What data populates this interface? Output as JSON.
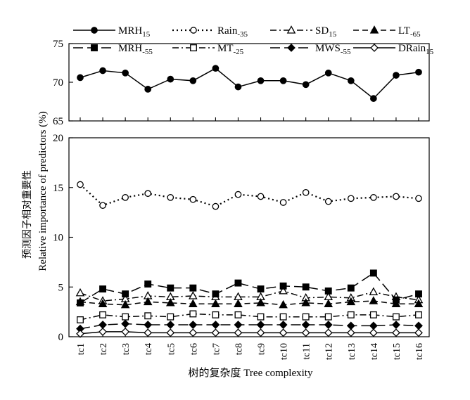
{
  "chart_data": {
    "type": "line",
    "title": "",
    "xlabel": "树的复杂度 Tree complexity",
    "ylabel_cn": "预测因子相对重要性",
    "ylabel_en": "Relative importance of predictors (%)",
    "categories": [
      "tc1",
      "tc2",
      "tc3",
      "tc4",
      "tc5",
      "tc6",
      "tc7",
      "tc8",
      "tc9",
      "tc10",
      "tc11",
      "tc12",
      "tc13",
      "tc14",
      "tc15",
      "tc16"
    ],
    "panels": [
      {
        "name": "upper",
        "ylim": [
          65,
          75
        ],
        "yticks": [
          "65",
          "70",
          "75"
        ]
      },
      {
        "name": "lower",
        "ylim": [
          0,
          20
        ],
        "yticks": [
          "0",
          "5",
          "10",
          "15",
          "20"
        ]
      }
    ],
    "grid": false,
    "legend_position": "top",
    "series": [
      {
        "name": "MRH",
        "sub": "15",
        "panel": "upper",
        "line": "solid",
        "marker": "circle",
        "filled": true,
        "values": [
          70.6,
          71.5,
          71.2,
          69.1,
          70.4,
          70.2,
          71.8,
          69.4,
          70.2,
          70.2,
          69.7,
          71.2,
          70.2,
          67.9,
          70.9,
          71.3
        ]
      },
      {
        "name": "Rain",
        "sub": "-35",
        "panel": "lower",
        "line": "dotted",
        "marker": "circle",
        "filled": false,
        "values": [
          15.3,
          13.2,
          14.0,
          14.4,
          14.0,
          13.8,
          13.1,
          14.3,
          14.1,
          13.5,
          14.5,
          13.6,
          13.9,
          14.0,
          14.1,
          13.9
        ]
      },
      {
        "name": "SD",
        "sub": "15",
        "panel": "lower",
        "line": "dashdot",
        "marker": "triangle",
        "filled": false,
        "values": [
          4.4,
          3.6,
          3.8,
          4.1,
          4.0,
          4.1,
          4.0,
          4.0,
          4.0,
          4.6,
          3.9,
          4.0,
          3.9,
          4.5,
          4.0,
          3.7
        ]
      },
      {
        "name": "LT",
        "sub": "-65",
        "panel": "lower",
        "line": "dashed",
        "marker": "triangle",
        "filled": true,
        "values": [
          3.5,
          3.3,
          3.2,
          3.5,
          3.4,
          3.3,
          3.3,
          3.3,
          3.4,
          3.2,
          3.4,
          3.3,
          3.5,
          3.6,
          3.3,
          3.3
        ]
      },
      {
        "name": "MRH",
        "sub": "-55",
        "panel": "lower",
        "line": "longdash",
        "marker": "square",
        "filled": true,
        "values": [
          3.4,
          4.8,
          4.3,
          5.3,
          4.9,
          4.9,
          4.3,
          5.4,
          4.8,
          5.1,
          5.0,
          4.6,
          4.9,
          6.4,
          3.7,
          4.3
        ]
      },
      {
        "name": "MT",
        "sub": "-25",
        "panel": "lower",
        "line": "dashdot",
        "marker": "square",
        "filled": false,
        "values": [
          1.7,
          2.2,
          2.0,
          2.1,
          2.0,
          2.3,
          2.2,
          2.2,
          2.0,
          2.0,
          2.0,
          2.0,
          2.2,
          2.2,
          2.0,
          2.2
        ]
      },
      {
        "name": "MWS",
        "sub": "-55",
        "panel": "lower",
        "line": "longdash",
        "marker": "diamond",
        "filled": true,
        "values": [
          0.8,
          1.2,
          1.3,
          1.2,
          1.2,
          1.2,
          1.2,
          1.2,
          1.2,
          1.2,
          1.2,
          1.2,
          1.1,
          1.1,
          1.2,
          1.1
        ]
      },
      {
        "name": "DRain",
        "sub": "15",
        "panel": "lower",
        "line": "solid",
        "marker": "diamond",
        "filled": false,
        "values": [
          0.3,
          0.5,
          0.5,
          0.4,
          0.4,
          0.4,
          0.4,
          0.4,
          0.4,
          0.4,
          0.4,
          0.4,
          0.4,
          0.4,
          0.4,
          0.4
        ]
      }
    ]
  }
}
